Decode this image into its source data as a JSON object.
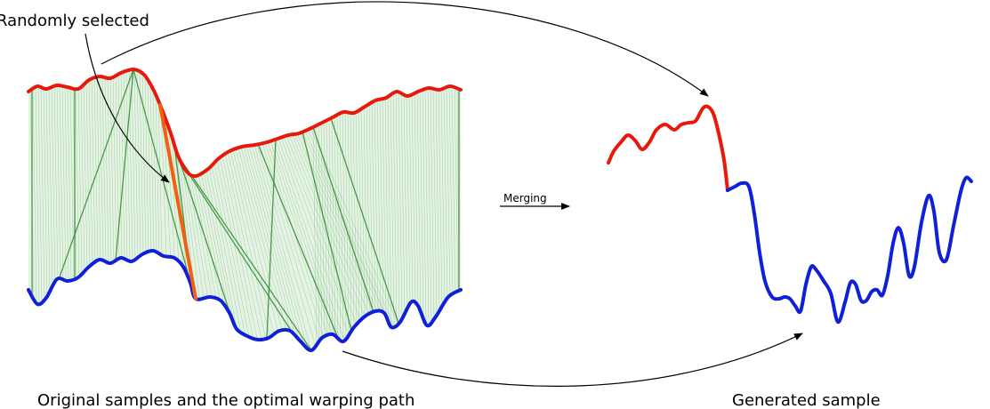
{
  "labels": {
    "randomly_selected": "Randomly selected",
    "merging": "Merging",
    "left_caption": "Original samples and the optimal warping path",
    "right_caption": "Generated sample"
  },
  "colors": {
    "top_series": "#e8180c",
    "bottom_series": "#1020d8",
    "warping_path": "#2e8b2e",
    "warping_fill": "#cfead0",
    "selected_segment": "#f06010",
    "arrows": "#000000"
  }
}
